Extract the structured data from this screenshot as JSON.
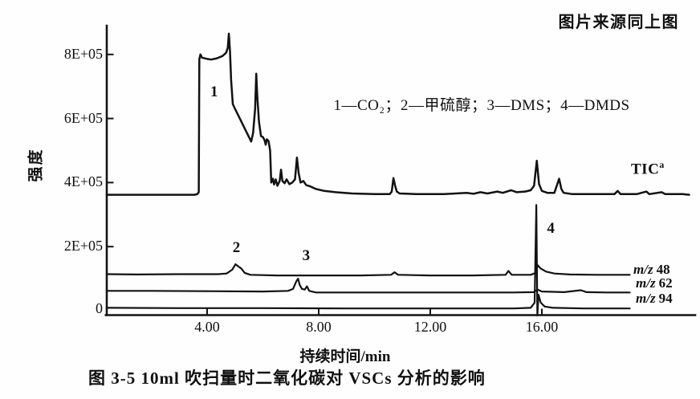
{
  "header": {
    "source_note": "图片来源同上图"
  },
  "legend": {
    "text": "1—CO₂；2—甲硫醇；3—DMS；4—DMDS"
  },
  "caption": "图 3-5  10ml 吹扫量时二氧化碳对 VSCs 分析的影响",
  "chart_data": {
    "type": "line",
    "title": "",
    "xlabel": "持续时间/min",
    "ylabel": "强度",
    "xlim": [
      0.4,
      21.4
    ],
    "ylim": [
      0,
      900000
    ],
    "grid": false,
    "legend_position": "top-center",
    "x_ticks": [
      {
        "label": "4.00",
        "value": 4
      },
      {
        "label": "8.00",
        "value": 8
      },
      {
        "label": "12.00",
        "value": 12
      },
      {
        "label": "16.00",
        "value": 16
      }
    ],
    "y_ticks": [
      {
        "label": "8E+05",
        "value": 800000
      },
      {
        "label": "6E+05",
        "value": 600000
      },
      {
        "label": "4E+05",
        "value": 400000
      },
      {
        "label": "2E+05",
        "value": 200000
      },
      {
        "label": "0",
        "value": 0
      }
    ],
    "annotations": [
      {
        "label": "1",
        "t": 4.25,
        "v": 680000,
        "meaning": "CO₂"
      },
      {
        "label": "2",
        "t": 5.05,
        "v": 193000,
        "meaning": "甲硫醇"
      },
      {
        "label": "3",
        "t": 7.55,
        "v": 167000,
        "meaning": "DMS"
      },
      {
        "label": "4",
        "t": 16.32,
        "v": 252000,
        "meaning": "DMDS"
      }
    ],
    "series": [
      {
        "name": "TIC",
        "superscript": "a",
        "points": [
          [
            0.4,
            362000
          ],
          [
            3.55,
            362000
          ],
          [
            3.65,
            364000
          ],
          [
            3.7,
            370000
          ],
          [
            3.72,
            785000
          ],
          [
            3.76,
            800000
          ],
          [
            3.82,
            790000
          ],
          [
            4.0,
            786000
          ],
          [
            4.15,
            784000
          ],
          [
            4.35,
            788000
          ],
          [
            4.55,
            795000
          ],
          [
            4.68,
            805000
          ],
          [
            4.74,
            820000
          ],
          [
            4.78,
            865000
          ],
          [
            4.82,
            810000
          ],
          [
            4.86,
            720000
          ],
          [
            4.92,
            645000
          ],
          [
            5.0,
            630000
          ],
          [
            5.2,
            595000
          ],
          [
            5.4,
            560000
          ],
          [
            5.58,
            528000
          ],
          [
            5.65,
            555000
          ],
          [
            5.72,
            630000
          ],
          [
            5.76,
            740000
          ],
          [
            5.8,
            670000
          ],
          [
            5.86,
            590000
          ],
          [
            5.93,
            545000
          ],
          [
            6.0,
            542000
          ],
          [
            6.06,
            532000
          ],
          [
            6.1,
            518000
          ],
          [
            6.14,
            535000
          ],
          [
            6.2,
            530000
          ],
          [
            6.26,
            500000
          ],
          [
            6.3,
            400000
          ],
          [
            6.36,
            412000
          ],
          [
            6.4,
            394000
          ],
          [
            6.46,
            410000
          ],
          [
            6.52,
            390000
          ],
          [
            6.6,
            405000
          ],
          [
            6.65,
            440000
          ],
          [
            6.7,
            405000
          ],
          [
            6.78,
            398000
          ],
          [
            6.85,
            410000
          ],
          [
            6.95,
            395000
          ],
          [
            7.05,
            400000
          ],
          [
            7.15,
            410000
          ],
          [
            7.22,
            478000
          ],
          [
            7.28,
            430000
          ],
          [
            7.35,
            400000
          ],
          [
            7.45,
            405000
          ],
          [
            7.55,
            392000
          ],
          [
            7.7,
            388000
          ],
          [
            7.9,
            380000
          ],
          [
            8.2,
            374000
          ],
          [
            8.6,
            370000
          ],
          [
            9.2,
            366000
          ],
          [
            10.0,
            364000
          ],
          [
            10.55,
            364000
          ],
          [
            10.62,
            372000
          ],
          [
            10.68,
            414000
          ],
          [
            10.74,
            390000
          ],
          [
            10.8,
            372000
          ],
          [
            10.9,
            366000
          ],
          [
            11.5,
            364000
          ],
          [
            12.5,
            364000
          ],
          [
            13.3,
            368000
          ],
          [
            13.55,
            365000
          ],
          [
            13.8,
            370000
          ],
          [
            14.05,
            366000
          ],
          [
            14.4,
            372000
          ],
          [
            14.6,
            368000
          ],
          [
            14.9,
            376000
          ],
          [
            15.1,
            370000
          ],
          [
            15.4,
            372000
          ],
          [
            15.6,
            376000
          ],
          [
            15.72,
            390000
          ],
          [
            15.82,
            468000
          ],
          [
            15.9,
            395000
          ],
          [
            16.0,
            374000
          ],
          [
            16.2,
            368000
          ],
          [
            16.45,
            368000
          ],
          [
            16.62,
            412000
          ],
          [
            16.7,
            380000
          ],
          [
            16.78,
            368000
          ],
          [
            17.1,
            364000
          ],
          [
            17.9,
            364000
          ],
          [
            18.6,
            364000
          ],
          [
            18.72,
            374000
          ],
          [
            18.82,
            364000
          ],
          [
            19.4,
            364000
          ],
          [
            19.75,
            372000
          ],
          [
            19.85,
            364000
          ],
          [
            20.3,
            370000
          ],
          [
            20.42,
            364000
          ],
          [
            21.05,
            364000
          ],
          [
            21.28,
            362000
          ]
        ]
      },
      {
        "name": "m/z 48",
        "name_italic": "m/z",
        "name_value": "48",
        "points": [
          [
            0.4,
            114000
          ],
          [
            1.5,
            113000
          ],
          [
            3.0,
            114000
          ],
          [
            4.4,
            114000
          ],
          [
            4.7,
            116000
          ],
          [
            4.9,
            128000
          ],
          [
            5.02,
            145000
          ],
          [
            5.12,
            138000
          ],
          [
            5.22,
            132000
          ],
          [
            5.35,
            118000
          ],
          [
            5.55,
            112000
          ],
          [
            6.5,
            110000
          ],
          [
            8.0,
            110000
          ],
          [
            9.5,
            110000
          ],
          [
            10.6,
            112000
          ],
          [
            10.72,
            120000
          ],
          [
            10.85,
            112000
          ],
          [
            12.0,
            110000
          ],
          [
            13.5,
            110000
          ],
          [
            14.7,
            112000
          ],
          [
            14.8,
            124000
          ],
          [
            14.92,
            112000
          ],
          [
            15.6,
            112000
          ],
          [
            15.78,
            118000
          ],
          [
            15.85,
            142000
          ],
          [
            15.95,
            132000
          ],
          [
            16.15,
            122000
          ],
          [
            16.45,
            116000
          ],
          [
            17.0,
            113000
          ],
          [
            18.0,
            112000
          ],
          [
            19.15,
            112000
          ]
        ]
      },
      {
        "name": "m/z 62",
        "name_italic": "m/z",
        "name_value": "62",
        "points": [
          [
            0.4,
            62000
          ],
          [
            2.0,
            62000
          ],
          [
            4.0,
            61000
          ],
          [
            6.0,
            60000
          ],
          [
            6.9,
            62000
          ],
          [
            7.08,
            68000
          ],
          [
            7.2,
            92000
          ],
          [
            7.26,
            100000
          ],
          [
            7.32,
            80000
          ],
          [
            7.4,
            68000
          ],
          [
            7.5,
            66000
          ],
          [
            7.58,
            76000
          ],
          [
            7.66,
            62000
          ],
          [
            7.9,
            57000
          ],
          [
            9.0,
            57000
          ],
          [
            11.0,
            57000
          ],
          [
            13.0,
            57000
          ],
          [
            15.0,
            57000
          ],
          [
            15.7,
            58000
          ],
          [
            15.85,
            66000
          ],
          [
            16.0,
            60000
          ],
          [
            16.8,
            58000
          ],
          [
            17.4,
            64000
          ],
          [
            17.6,
            58000
          ],
          [
            18.3,
            57000
          ],
          [
            19.15,
            57000
          ]
        ]
      },
      {
        "name": "m/z 94",
        "name_italic": "m/z",
        "name_value": "94",
        "points": [
          [
            0.4,
            9000
          ],
          [
            3.0,
            8000
          ],
          [
            6.0,
            8000
          ],
          [
            9.0,
            7000
          ],
          [
            12.0,
            7000
          ],
          [
            15.0,
            7000
          ],
          [
            15.6,
            9000
          ],
          [
            15.74,
            25000
          ],
          [
            15.8,
            330000
          ],
          [
            15.84,
            -15000
          ],
          [
            15.88,
            50000
          ],
          [
            15.96,
            25000
          ],
          [
            16.1,
            13000
          ],
          [
            16.4,
            9000
          ],
          [
            17.5,
            7000
          ],
          [
            19.15,
            7000
          ]
        ]
      }
    ]
  }
}
